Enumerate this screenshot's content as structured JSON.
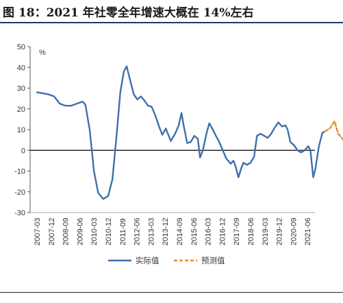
{
  "figure_title": "图 18：2021 年社零全年增速大概在 14%左右",
  "chart_data": {
    "type": "line",
    "title": "图 18：2021 年社零全年增速大概在 14%左右",
    "ylabel": "%",
    "ylim": [
      -30,
      50
    ],
    "ytick_values": [
      50,
      40,
      30,
      20,
      10,
      0,
      -10,
      -20,
      -30
    ],
    "ytick_labels": [
      "50",
      "40",
      "30",
      "20",
      "10",
      "0",
      "-10",
      "-20",
      "-30"
    ],
    "xtick_labels": [
      "2007-03",
      "2007-12",
      "2008-09",
      "2009-06",
      "2010-03",
      "2010-12",
      "2011-09",
      "2012-06",
      "2013-03",
      "2013-12",
      "2014-09",
      "2015-06",
      "2016-03",
      "2016-12",
      "2017-09",
      "2018-06",
      "2019-03",
      "2019-12",
      "2020-09",
      "2021-06"
    ],
    "grid": false,
    "legend_position": "bottom",
    "series": [
      {
        "name": "实际值",
        "color": "#3d6fad",
        "style": "solid",
        "points": [
          [
            0,
            28
          ],
          [
            0.4,
            27.5
          ],
          [
            0.8,
            27
          ],
          [
            1.2,
            26
          ],
          [
            1.6,
            22.5
          ],
          [
            2,
            21.5
          ],
          [
            2.4,
            21.5
          ],
          [
            2.8,
            22.5
          ],
          [
            3.2,
            23.5
          ],
          [
            3.4,
            22
          ],
          [
            3.7,
            10
          ],
          [
            4.0,
            -10
          ],
          [
            4.3,
            -20.5
          ],
          [
            4.65,
            -23.5
          ],
          [
            5.0,
            -22
          ],
          [
            5.3,
            -14
          ],
          [
            5.6,
            8
          ],
          [
            5.85,
            28
          ],
          [
            6.1,
            38
          ],
          [
            6.3,
            40.5
          ],
          [
            6.5,
            35
          ],
          [
            6.8,
            27
          ],
          [
            7.05,
            24.5
          ],
          [
            7.3,
            26
          ],
          [
            7.55,
            24
          ],
          [
            7.8,
            21.5
          ],
          [
            8.05,
            21
          ],
          [
            8.3,
            17
          ],
          [
            8.6,
            11
          ],
          [
            8.8,
            7.5
          ],
          [
            9.05,
            10.5
          ],
          [
            9.25,
            7
          ],
          [
            9.4,
            4.5
          ],
          [
            9.7,
            8
          ],
          [
            9.95,
            12
          ],
          [
            10.15,
            18
          ],
          [
            10.3,
            12
          ],
          [
            10.55,
            3.5
          ],
          [
            10.8,
            4
          ],
          [
            11.05,
            7
          ],
          [
            11.3,
            5.5
          ],
          [
            11.45,
            -3.5
          ],
          [
            11.65,
            0
          ],
          [
            11.9,
            8
          ],
          [
            12.1,
            13
          ],
          [
            12.35,
            10
          ],
          [
            12.6,
            6.5
          ],
          [
            12.8,
            4
          ],
          [
            13.05,
            0
          ],
          [
            13.3,
            -4
          ],
          [
            13.6,
            -6.5
          ],
          [
            13.8,
            -5
          ],
          [
            13.95,
            -8
          ],
          [
            14.15,
            -13
          ],
          [
            14.35,
            -8.5
          ],
          [
            14.5,
            -6
          ],
          [
            14.75,
            -7
          ],
          [
            15.0,
            -6
          ],
          [
            15.25,
            -3
          ],
          [
            15.45,
            7
          ],
          [
            15.7,
            8
          ],
          [
            15.95,
            7
          ],
          [
            16.2,
            6
          ],
          [
            16.4,
            7.5
          ],
          [
            16.7,
            11
          ],
          [
            16.95,
            13.5
          ],
          [
            17.2,
            11.5
          ],
          [
            17.45,
            12
          ],
          [
            17.6,
            10
          ],
          [
            17.8,
            4
          ],
          [
            18.05,
            2.5
          ],
          [
            18.3,
            0
          ],
          [
            18.55,
            -1
          ],
          [
            18.8,
            0
          ],
          [
            19.05,
            2
          ],
          [
            19.2,
            0
          ],
          [
            19.4,
            -13
          ],
          [
            19.55,
            -9
          ],
          [
            19.8,
            2
          ],
          [
            20.05,
            8.5
          ],
          [
            20.2,
            9
          ]
        ]
      },
      {
        "name": "预测值",
        "color": "#e58b2e",
        "style": "dashed",
        "points": [
          [
            20.2,
            9
          ],
          [
            20.55,
            10.5
          ],
          [
            20.9,
            14
          ],
          [
            21.15,
            8
          ],
          [
            21.4,
            6
          ],
          [
            21.65,
            4
          ],
          [
            22.0,
            2.5
          ]
        ]
      }
    ]
  }
}
